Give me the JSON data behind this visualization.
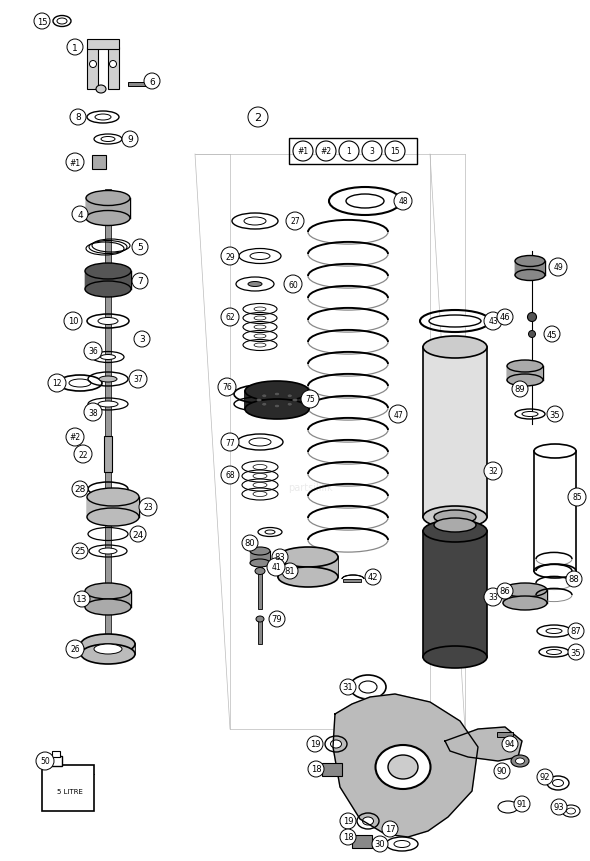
{
  "bg_color": "#ffffff",
  "fig_width": 5.9,
  "fig_height": 8.62,
  "dpi": 100
}
